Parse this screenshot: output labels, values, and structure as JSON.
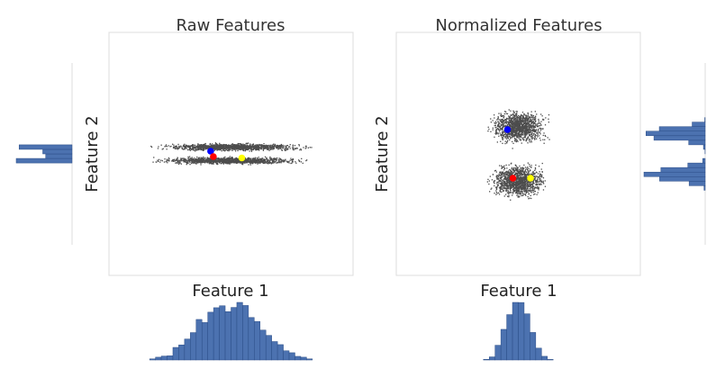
{
  "chart_data": [
    {
      "type": "scatter",
      "panel": "raw",
      "title": "Raw Features",
      "xlabel": "Feature 1",
      "ylabel": "Feature 2",
      "xlim": [
        -4.5,
        4.5
      ],
      "ylim": [
        -4.5,
        4.5
      ],
      "grid": false,
      "clusters": [
        {
          "center": [
            0,
            0.25
          ],
          "spread": [
            2.3,
            0.12
          ],
          "count": 1300
        },
        {
          "center": [
            0,
            -0.25
          ],
          "spread": [
            2.3,
            0.12
          ],
          "count": 1300
        }
      ],
      "highlighted_points": [
        {
          "color": "#0000ff",
          "x": -0.75,
          "y": 0.1
        },
        {
          "color": "#ff0000",
          "x": -0.65,
          "y": -0.1
        },
        {
          "color": "#ffff00",
          "x": 0.4,
          "y": -0.15
        }
      ],
      "point_color": "#4d4d4d",
      "marginal_histograms": [
        "bottom",
        "left"
      ]
    },
    {
      "type": "scatter",
      "panel": "normalized",
      "title": "Normalized Features",
      "xlabel": "Feature 1",
      "ylabel": "Feature 2",
      "xlim": [
        -4.5,
        4.5
      ],
      "ylim": [
        -4.5,
        4.5
      ],
      "grid": false,
      "clusters": [
        {
          "center": [
            0,
            1.0
          ],
          "spread": [
            0.9,
            0.55
          ],
          "count": 1300
        },
        {
          "center": [
            0,
            -1.0
          ],
          "spread": [
            0.9,
            0.55
          ],
          "count": 1300
        }
      ],
      "highlighted_points": [
        {
          "color": "#0000ff",
          "x": -0.4,
          "y": 0.9
        },
        {
          "color": "#ff0000",
          "x": -0.2,
          "y": -0.9
        },
        {
          "color": "#ffff00",
          "x": 0.45,
          "y": -0.9
        }
      ],
      "point_color": "#4d4d4d",
      "marginal_histograms": [
        "bottom",
        "right"
      ]
    }
  ],
  "colors": {
    "histogram_fill": "#4c72b0",
    "histogram_edge": "#2a4c86",
    "frame": "#dddddd"
  }
}
